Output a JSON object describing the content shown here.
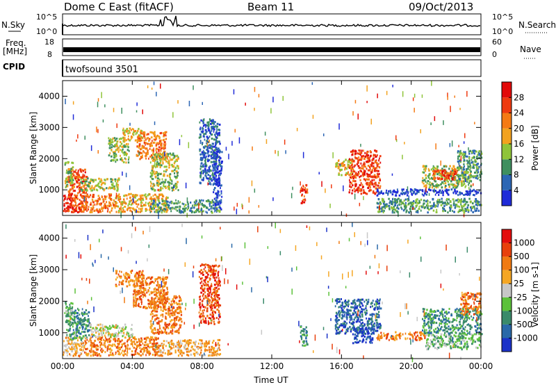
{
  "header": {
    "station": "Dome C East (fitACF)",
    "beam": "Beam 11",
    "date": "09/Oct/2013"
  },
  "aux": {
    "nsky_label": "N.Sky",
    "nsky_ticks": [
      "10^5",
      "10^0"
    ],
    "nsearch_label": "N.Search",
    "nsearch_ticks": [
      "10^5",
      "10^0"
    ],
    "freq_label": "Freq.",
    "freq_unit": "[MHz]",
    "freq_ticks": [
      "18",
      "8"
    ],
    "nave_label": "Nave",
    "nave_ticks": [
      "60",
      "0"
    ],
    "cpid_label": "CPID",
    "cpid_value": "twofsound 3501"
  },
  "chart_data": [
    {
      "type": "heatmap",
      "title": "",
      "xlabel": "",
      "ylabel": "Slant Range [km]",
      "x_ticks": [
        "00:00",
        "04:00",
        "08:00",
        "12:00",
        "16:00",
        "20:00",
        "00:00"
      ],
      "xlim_hours": [
        0,
        24
      ],
      "y_ticks": [
        1000,
        2000,
        3000,
        4000
      ],
      "ylim": [
        180,
        4500
      ],
      "colorbar": {
        "label": "Power [dB]",
        "ticks": [
          "4",
          "8",
          "12",
          "16",
          "20",
          "24",
          "28"
        ],
        "colors": [
          "#1f2bd8",
          "#2c66b4",
          "#3f8f5f",
          "#8fc43a",
          "#f2a21f",
          "#f57a14",
          "#ef3a10",
          "#e20a0a"
        ]
      },
      "blobs": [
        {
          "t0": 0.0,
          "t1": 0.6,
          "r0": 300,
          "r1": 850,
          "level": 7
        },
        {
          "t0": 0.3,
          "t1": 1.4,
          "r0": 300,
          "r1": 1700,
          "level": 6
        },
        {
          "t0": 0.1,
          "t1": 0.6,
          "r0": 1100,
          "r1": 2000,
          "level": 3
        },
        {
          "t0": 1.0,
          "t1": 3.0,
          "r0": 300,
          "r1": 900,
          "level": 5
        },
        {
          "t0": 1.0,
          "t1": 3.2,
          "r0": 1000,
          "r1": 1400,
          "level": 3
        },
        {
          "t0": 3.0,
          "t1": 6.0,
          "r0": 300,
          "r1": 900,
          "level": 4
        },
        {
          "t0": 5.0,
          "t1": 9.0,
          "r0": 300,
          "r1": 700,
          "level": 2
        },
        {
          "t0": 3.4,
          "t1": 4.6,
          "r0": 2600,
          "r1": 3000,
          "level": 4
        },
        {
          "t0": 4.2,
          "t1": 5.9,
          "r0": 2000,
          "r1": 2900,
          "level": 5
        },
        {
          "t0": 5.0,
          "t1": 6.6,
          "r0": 1000,
          "r1": 2200,
          "level": 3
        },
        {
          "t0": 2.6,
          "t1": 3.8,
          "r0": 1900,
          "r1": 2700,
          "level": 3
        },
        {
          "t0": 7.8,
          "t1": 9.0,
          "r0": 1200,
          "r1": 3300,
          "level": 1
        },
        {
          "t0": 8.6,
          "t1": 9.1,
          "r0": 400,
          "r1": 2300,
          "level": 0
        },
        {
          "t0": 13.6,
          "t1": 14.0,
          "r0": 600,
          "r1": 1200,
          "level": 6
        },
        {
          "t0": 15.6,
          "t1": 16.6,
          "r0": 1500,
          "r1": 2000,
          "level": 4
        },
        {
          "t0": 16.4,
          "t1": 18.2,
          "r0": 900,
          "r1": 2300,
          "level": 6
        },
        {
          "t0": 18.0,
          "t1": 24.0,
          "r0": 850,
          "r1": 1050,
          "level": 0
        },
        {
          "t0": 18.0,
          "t1": 24.0,
          "r0": 300,
          "r1": 750,
          "level": 2
        },
        {
          "t0": 20.6,
          "t1": 23.4,
          "r0": 1100,
          "r1": 1800,
          "level": 3
        },
        {
          "t0": 21.2,
          "t1": 22.6,
          "r0": 1350,
          "r1": 1700,
          "level": 6
        },
        {
          "t0": 22.6,
          "t1": 24.0,
          "r0": 1300,
          "r1": 2300,
          "level": 2
        }
      ]
    },
    {
      "type": "heatmap",
      "title": "",
      "xlabel": "Time UT",
      "ylabel": "Slant Range [km]",
      "x_ticks": [
        "00:00",
        "04:00",
        "08:00",
        "12:00",
        "16:00",
        "20:00",
        "00:00"
      ],
      "xlim_hours": [
        0,
        24
      ],
      "y_ticks": [
        1000,
        2000,
        3000,
        4000
      ],
      "ylim": [
        180,
        4500
      ],
      "colorbar": {
        "label": "Velocity [m s-1]",
        "ticks": [
          "1000",
          "500",
          "100",
          "25",
          "-25",
          "-100",
          "-500",
          "-1000"
        ],
        "colors": [
          "#1b32c8",
          "#2a69a8",
          "#3a8a6a",
          "#5cc13a",
          "#c7c7c7",
          "#f5a623",
          "#f07a12",
          "#e8400c",
          "#e30d0d"
        ]
      },
      "blobs": [
        {
          "t0": 0.0,
          "t1": 1.2,
          "r0": 300,
          "r1": 900,
          "level": 5
        },
        {
          "t0": 0.2,
          "t1": 1.5,
          "r0": 800,
          "r1": 1800,
          "level": 2
        },
        {
          "t0": 0.1,
          "t1": 0.6,
          "r0": 1300,
          "r1": 2000,
          "level": 3
        },
        {
          "t0": 1.2,
          "t1": 5.5,
          "r0": 300,
          "r1": 900,
          "level": 6
        },
        {
          "t0": 1.5,
          "t1": 4.0,
          "r0": 900,
          "r1": 1300,
          "level": 4
        },
        {
          "t0": 5.5,
          "t1": 9.0,
          "r0": 300,
          "r1": 800,
          "level": 5
        },
        {
          "t0": 3.0,
          "t1": 4.6,
          "r0": 2500,
          "r1": 3000,
          "level": 6
        },
        {
          "t0": 4.0,
          "t1": 6.0,
          "r0": 1800,
          "r1": 2800,
          "level": 6
        },
        {
          "t0": 5.0,
          "t1": 6.8,
          "r0": 1000,
          "r1": 2200,
          "level": 6
        },
        {
          "t0": 7.8,
          "t1": 9.0,
          "r0": 1300,
          "r1": 3200,
          "level": 7
        },
        {
          "t0": 13.6,
          "t1": 14.0,
          "r0": 600,
          "r1": 1300,
          "level": 2
        },
        {
          "t0": 15.6,
          "t1": 18.2,
          "r0": 1000,
          "r1": 2100,
          "level": 1
        },
        {
          "t0": 16.6,
          "t1": 17.8,
          "r0": 700,
          "r1": 1200,
          "level": 0
        },
        {
          "t0": 18.0,
          "t1": 20.8,
          "r0": 800,
          "r1": 1050,
          "level": 6
        },
        {
          "t0": 20.8,
          "t1": 24.0,
          "r0": 500,
          "r1": 1000,
          "level": 3
        },
        {
          "t0": 20.6,
          "t1": 24.0,
          "r0": 1000,
          "r1": 1800,
          "level": 2
        },
        {
          "t0": 22.8,
          "t1": 24.0,
          "r0": 1600,
          "r1": 2300,
          "level": 6
        }
      ]
    }
  ]
}
